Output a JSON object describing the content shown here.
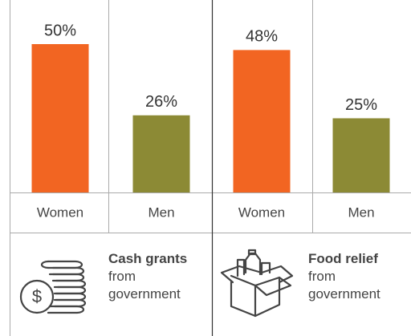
{
  "chart_data": [
    {
      "type": "bar",
      "title": "Cash grants",
      "subtitle": "from government",
      "categories": [
        "Women",
        "Men"
      ],
      "values": [
        50,
        26
      ],
      "value_labels": [
        "50%",
        "26%"
      ],
      "colors": [
        "#f26522",
        "#8c8a35"
      ]
    },
    {
      "type": "bar",
      "title": "Food relief",
      "subtitle": "from government",
      "categories": [
        "Women",
        "Men"
      ],
      "values": [
        48,
        25
      ],
      "value_labels": [
        "48%",
        "25%"
      ],
      "colors": [
        "#f26522",
        "#8c8a35"
      ]
    }
  ]
}
